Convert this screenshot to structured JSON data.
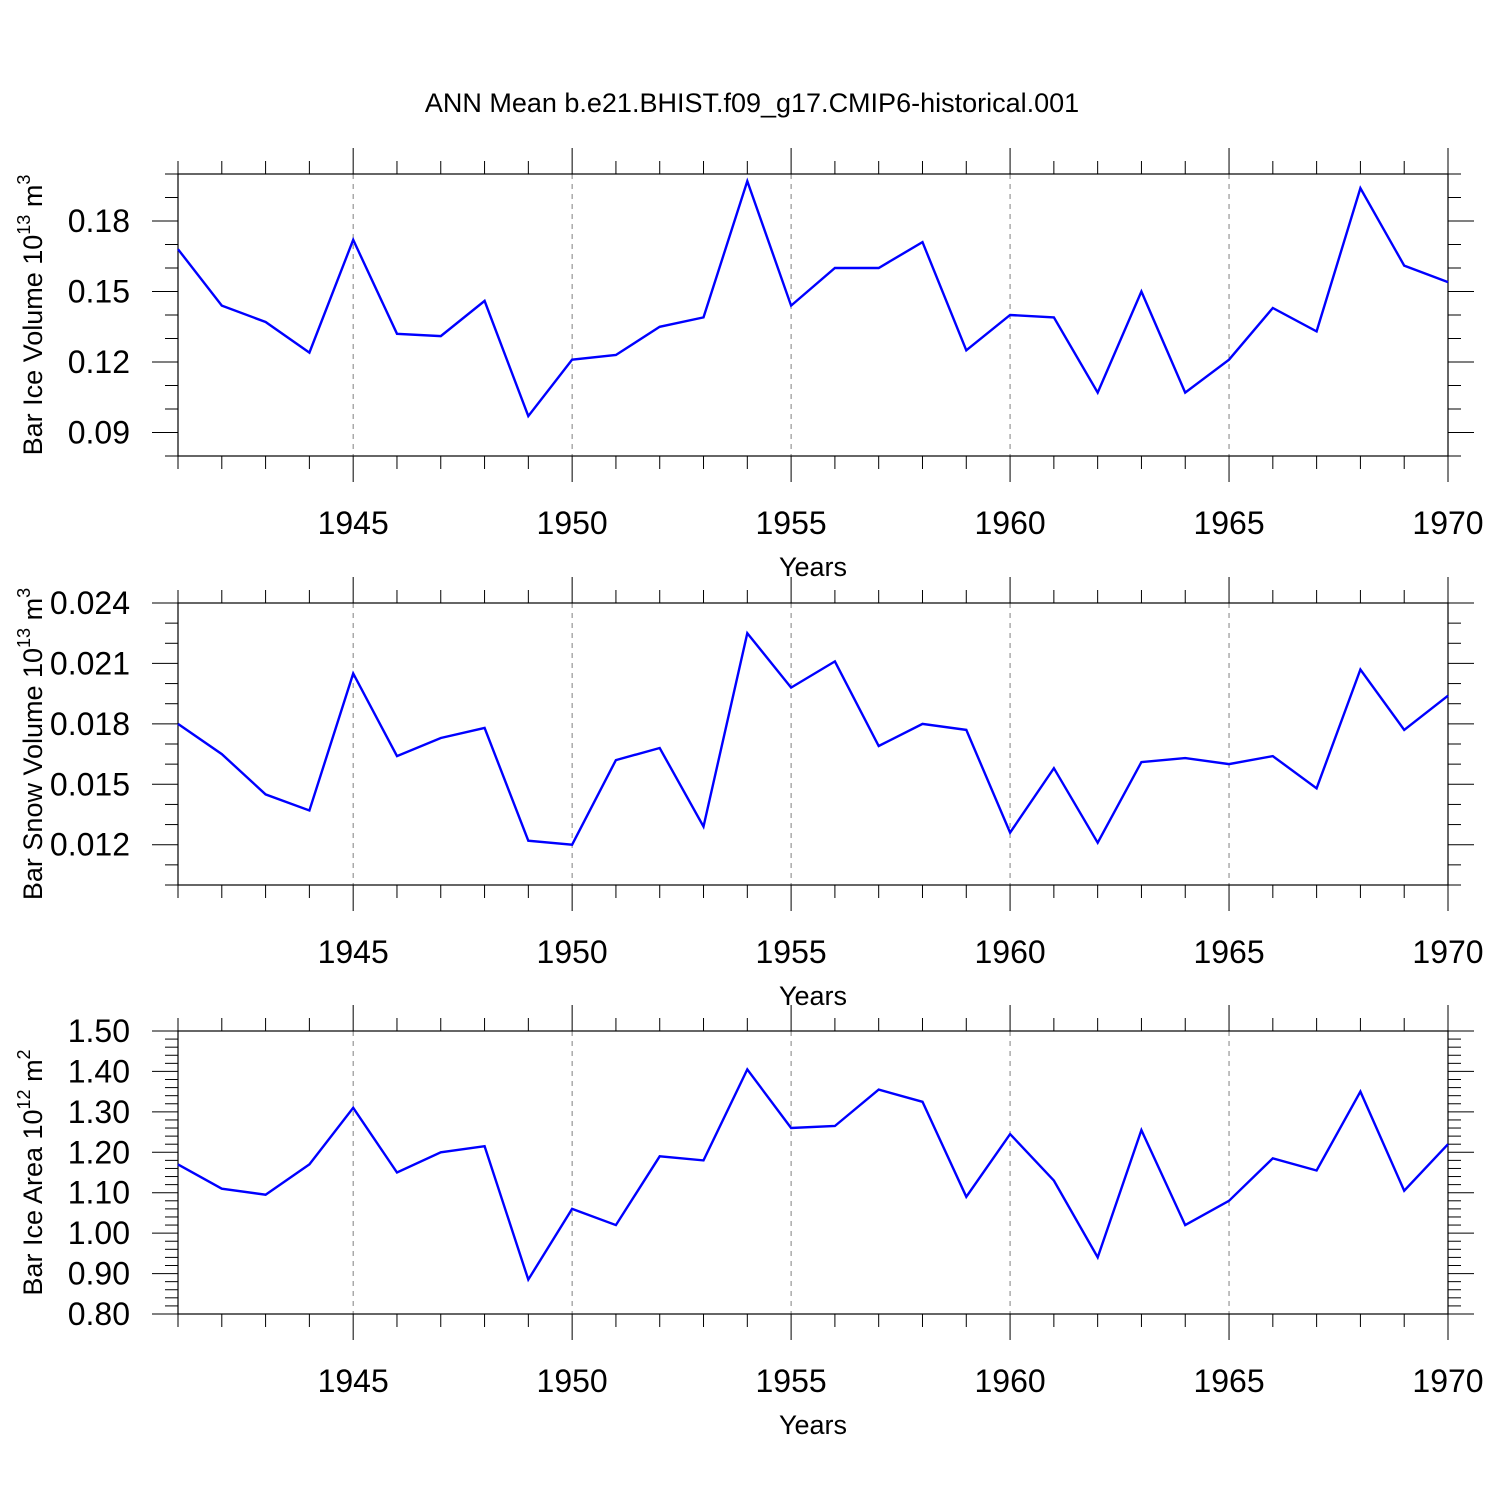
{
  "title": "ANN Mean b.e21.BHIST.f09_g17.CMIP6-historical.001",
  "style": {
    "line_color": "#0000ff",
    "axis_color": "#000000",
    "grid_color": "#808080"
  },
  "chart_data": [
    {
      "type": "line",
      "xlabel": "Years",
      "ylabel": {
        "text": "Bar Ice Volume 10",
        "exp": "13",
        "unit": " m",
        "unit_exp": "3"
      },
      "xlim": [
        1941,
        1970
      ],
      "ylim": [
        0.08,
        0.2
      ],
      "xticks": [
        1945,
        1950,
        1955,
        1960,
        1965,
        1970
      ],
      "yticks": [
        0.09,
        0.12,
        0.15,
        0.18
      ],
      "ytick_labels": [
        "0.09",
        "0.12",
        "0.15",
        "0.18"
      ],
      "y_minor_step": 0.01,
      "grid": "vertical-dashed",
      "x": [
        1941,
        1942,
        1943,
        1944,
        1945,
        1946,
        1947,
        1948,
        1949,
        1950,
        1951,
        1952,
        1953,
        1954,
        1955,
        1956,
        1957,
        1958,
        1959,
        1960,
        1961,
        1962,
        1963,
        1964,
        1965,
        1966,
        1967,
        1968,
        1969,
        1970
      ],
      "values": [
        0.168,
        0.144,
        0.137,
        0.124,
        0.172,
        0.132,
        0.131,
        0.146,
        0.097,
        0.121,
        0.123,
        0.135,
        0.139,
        0.197,
        0.144,
        0.16,
        0.16,
        0.171,
        0.125,
        0.14,
        0.139,
        0.107,
        0.15,
        0.107,
        0.121,
        0.143,
        0.133,
        0.194,
        0.161,
        0.154
      ]
    },
    {
      "type": "line",
      "xlabel": "Years",
      "ylabel": {
        "text": "Bar Snow Volume 10",
        "exp": "13",
        "unit": " m",
        "unit_exp": "3"
      },
      "xlim": [
        1941,
        1970
      ],
      "ylim": [
        0.01,
        0.024
      ],
      "xticks": [
        1945,
        1950,
        1955,
        1960,
        1965,
        1970
      ],
      "yticks": [
        0.012,
        0.015,
        0.018,
        0.021,
        0.024
      ],
      "ytick_labels": [
        "0.012",
        "0.015",
        "0.018",
        "0.021",
        "0.024"
      ],
      "y_minor_step": 0.001,
      "grid": "vertical-dashed",
      "x": [
        1941,
        1942,
        1943,
        1944,
        1945,
        1946,
        1947,
        1948,
        1949,
        1950,
        1951,
        1952,
        1953,
        1954,
        1955,
        1956,
        1957,
        1958,
        1959,
        1960,
        1961,
        1962,
        1963,
        1964,
        1965,
        1966,
        1967,
        1968,
        1969,
        1970
      ],
      "values": [
        0.018,
        0.0165,
        0.0145,
        0.0137,
        0.0205,
        0.0164,
        0.0173,
        0.0178,
        0.0122,
        0.012,
        0.0162,
        0.0168,
        0.0129,
        0.0225,
        0.0198,
        0.0211,
        0.0169,
        0.018,
        0.0177,
        0.0126,
        0.0158,
        0.0121,
        0.0161,
        0.0163,
        0.016,
        0.0164,
        0.0148,
        0.0207,
        0.0177,
        0.0194
      ]
    },
    {
      "type": "line",
      "xlabel": "Years",
      "ylabel": {
        "text": "Bar Ice Area 10",
        "exp": "12",
        "unit": " m",
        "unit_exp": "2"
      },
      "xlim": [
        1941,
        1970
      ],
      "ylim": [
        0.8,
        1.5
      ],
      "xticks": [
        1945,
        1950,
        1955,
        1960,
        1965,
        1970
      ],
      "yticks": [
        0.8,
        0.9,
        1.0,
        1.1,
        1.2,
        1.3,
        1.4,
        1.5
      ],
      "ytick_labels": [
        "0.80",
        "0.90",
        "1.00",
        "1.10",
        "1.20",
        "1.30",
        "1.40",
        "1.50"
      ],
      "y_minor_step": 0.02,
      "grid": "vertical-dashed",
      "x": [
        1941,
        1942,
        1943,
        1944,
        1945,
        1946,
        1947,
        1948,
        1949,
        1950,
        1951,
        1952,
        1953,
        1954,
        1955,
        1956,
        1957,
        1958,
        1959,
        1960,
        1961,
        1962,
        1963,
        1964,
        1965,
        1966,
        1967,
        1968,
        1969,
        1970
      ],
      "values": [
        1.17,
        1.11,
        1.095,
        1.17,
        1.31,
        1.15,
        1.2,
        1.215,
        0.885,
        1.06,
        1.02,
        1.19,
        1.18,
        1.405,
        1.26,
        1.265,
        1.355,
        1.325,
        1.09,
        1.245,
        1.13,
        0.94,
        1.255,
        1.02,
        1.08,
        1.185,
        1.155,
        1.35,
        1.105,
        1.22
      ]
    }
  ]
}
